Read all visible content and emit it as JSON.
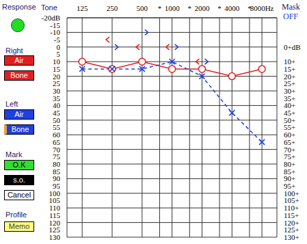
{
  "chart_data": {
    "type": "line",
    "log": "x",
    "grid": true,
    "x": [
      125,
      250,
      500,
      1000,
      2000,
      4000,
      8000
    ],
    "xlim": [
      88,
      11314
    ],
    "xticks": [
      125,
      250,
      500,
      {
        "value": 750,
        "label": "*"
      },
      1000,
      {
        "value": 1500,
        "label": "*"
      },
      2000,
      {
        "value": 3000,
        "label": "*"
      },
      4000,
      {
        "value": 6000,
        "label": "*"
      },
      {
        "value": 8000,
        "label": "8000Hz"
      }
    ],
    "ylim": [
      130,
      -20
    ],
    "yticks": [
      {
        "value": -20,
        "label": "-20dB"
      },
      -15,
      -10,
      -5,
      0,
      5,
      10,
      15,
      20,
      25,
      30,
      35,
      40,
      45,
      50,
      55,
      60,
      65,
      70,
      75,
      80,
      85,
      90,
      95,
      100,
      105,
      110,
      115,
      120,
      125,
      130
    ],
    "y2lim": [
      130,
      -20
    ],
    "y2ticks": [
      {
        "value": 0,
        "label": "0+dB"
      },
      {
        "value": 10,
        "label": "10+"
      },
      {
        "value": 15,
        "label": "15+"
      },
      {
        "value": 20,
        "label": "20+"
      },
      {
        "value": 25,
        "label": "25+"
      },
      {
        "value": 30,
        "label": "30+"
      },
      {
        "value": 35,
        "label": "35+"
      },
      {
        "value": 40,
        "label": "40+"
      },
      {
        "value": 45,
        "label": "45+"
      },
      {
        "value": 50,
        "label": "50+"
      },
      {
        "value": 55,
        "label": "55+"
      },
      {
        "value": 60,
        "label": "60+"
      },
      {
        "value": 65,
        "label": "65+"
      },
      {
        "value": 70,
        "label": "70+"
      },
      {
        "value": 75,
        "label": "75+"
      },
      {
        "value": 80,
        "label": "80+"
      },
      {
        "value": 85,
        "label": "85+"
      },
      {
        "value": 90,
        "label": "90+"
      },
      {
        "value": 95,
        "label": "95+"
      },
      {
        "value": 100,
        "label": "100+"
      },
      {
        "value": 105,
        "label": "105+"
      },
      {
        "value": 110,
        "label": "110+"
      },
      {
        "value": 115,
        "label": "115+"
      },
      {
        "value": 120,
        "label": "120+"
      },
      {
        "value": 125,
        "label": "125+"
      },
      {
        "value": 130,
        "label": "130+"
      }
    ],
    "series": [
      {
        "color": "#e02020",
        "marker": "circle",
        "line_style": "solid",
        "values": [
          10,
          15,
          10,
          15,
          15,
          20,
          15
        ]
      },
      {
        "color": "#2040e0",
        "marker": "x",
        "line_style": "dashed",
        "values": [
          15,
          15,
          15,
          10,
          20,
          45,
          65
        ]
      },
      {
        "color": "#e02020",
        "marker": "caret-left",
        "line_style": "none",
        "values": [
          null,
          -5,
          0,
          0,
          10,
          null,
          null
        ]
      },
      {
        "color": "#2040e0",
        "marker": "caret-right",
        "line_style": "none",
        "values": [
          null,
          0,
          -10,
          0,
          10,
          null,
          null
        ]
      }
    ]
  },
  "panel": {
    "response": "Response",
    "tone": "Tone",
    "right": {
      "label": "Right",
      "buttons": [
        "Air",
        "Bone"
      ]
    },
    "left": {
      "label": "Left",
      "buttons": [
        "Air",
        "Bone"
      ]
    },
    "mark": {
      "label": "Mark",
      "buttons": [
        "O.K",
        "s.o.",
        "Cancel"
      ]
    },
    "profile": {
      "label": "Profile",
      "buttons": [
        "Memo"
      ]
    }
  },
  "mask": {
    "label": "Mask",
    "state": "OFF"
  }
}
